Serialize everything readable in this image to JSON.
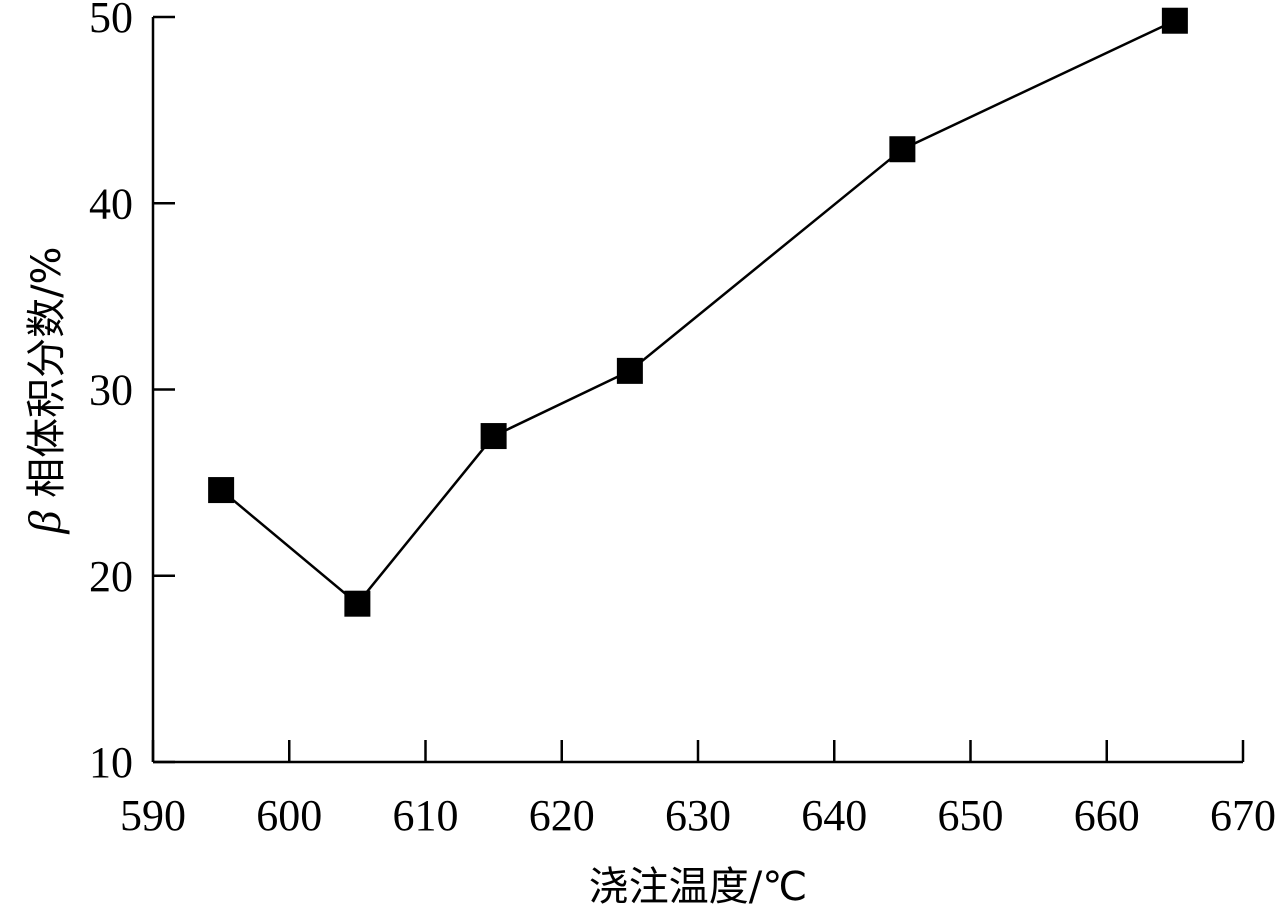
{
  "chart_data": {
    "type": "line",
    "title": "",
    "xlabel": "浇注温度/℃",
    "ylabel_symbol": "β",
    "ylabel_text": "相体积分数/%",
    "xlim": [
      590,
      670
    ],
    "ylim": [
      10,
      50
    ],
    "xticks": [
      "590",
      "600",
      "610",
      "620",
      "630",
      "640",
      "650",
      "660",
      "670"
    ],
    "yticks": [
      "10",
      "20",
      "30",
      "40",
      "50"
    ],
    "grid": false,
    "legend": "none",
    "marker": "square",
    "line_color": "#000000",
    "series": [
      {
        "x": [
          595,
          605,
          615,
          625,
          645,
          665
        ],
        "y": [
          24.6,
          18.5,
          27.5,
          31.0,
          42.9,
          49.8
        ]
      }
    ]
  }
}
